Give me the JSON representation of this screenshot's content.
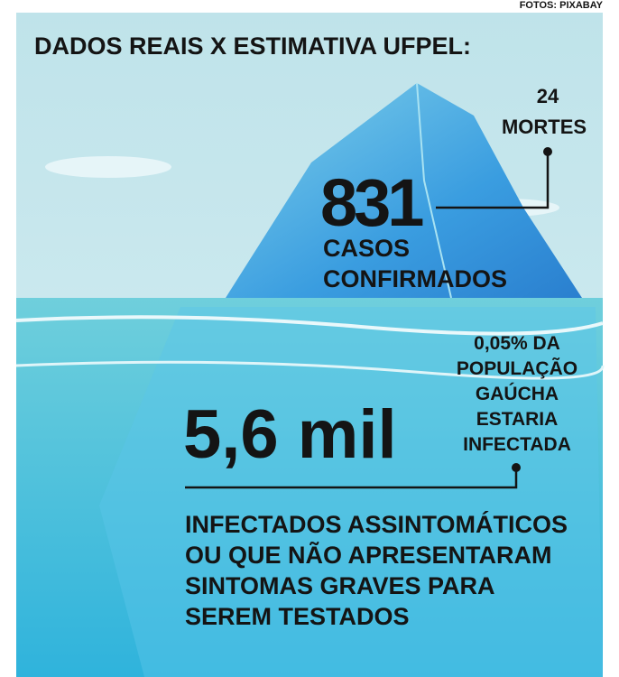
{
  "credit": "FOTOS: PIXABAY",
  "header": {
    "title": "DADOS REAIS X ESTIMATIVA UFPEL:"
  },
  "deaths": {
    "number": "24",
    "label": "MORTES"
  },
  "confirmed": {
    "number": "831",
    "label_lines": [
      "CASOS",
      "CONFIRMADOS"
    ]
  },
  "note": {
    "lines": [
      "0,05% DA",
      "POPULAÇÃO",
      "GAÚCHA",
      "ESTARIA",
      "INFECTADA"
    ]
  },
  "estimate": {
    "number": "5,6 mil",
    "description_lines": [
      "INFECTADOS ASSINTOMÁTICOS",
      "OU QUE NÃO APRESENTARAM",
      "SINTOMAS GRAVES PARA",
      "SEREM TESTADOS"
    ]
  }
}
